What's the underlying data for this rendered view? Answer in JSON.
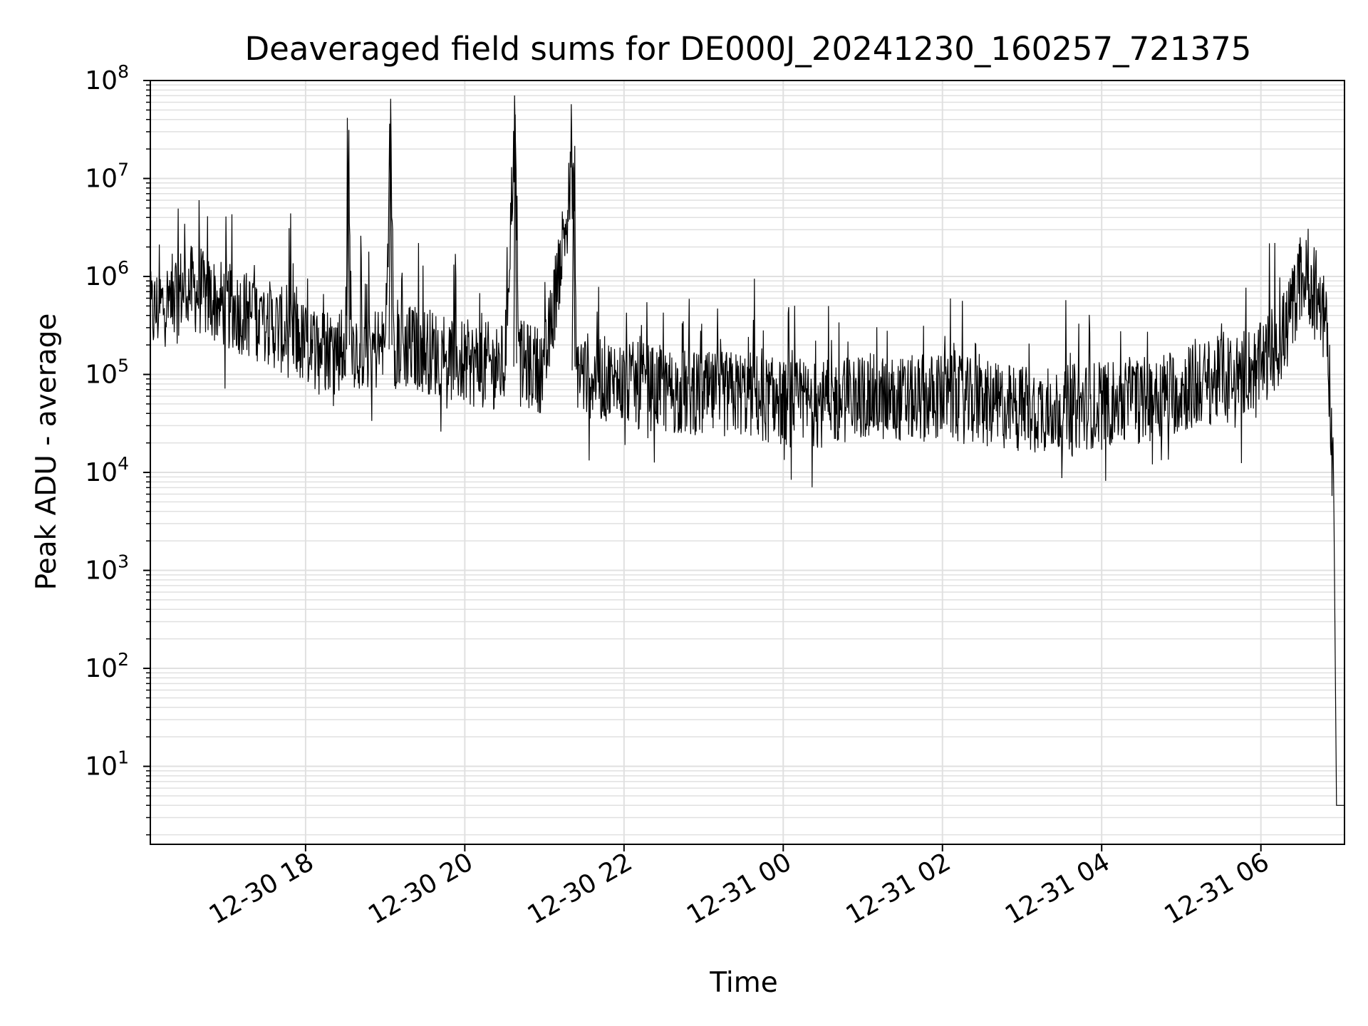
{
  "chart_data": {
    "type": "line",
    "title": "Deaveraged field sums for DE000J_20241230_160257_721375",
    "xlabel": "Time",
    "ylabel": "Peak ADU - average",
    "y_scale": "log",
    "ylim": [
      1.6,
      100000000
    ],
    "xlim": [
      "12-30 16:03",
      "12-31 07:03"
    ],
    "grid": true,
    "x_ticks": [
      "12-30 18",
      "12-30 20",
      "12-30 22",
      "12-31 00",
      "12-31 02",
      "12-31 04",
      "12-31 06"
    ],
    "y_ticks": [
      {
        "base": "10",
        "exp": "1",
        "value": 10
      },
      {
        "base": "10",
        "exp": "2",
        "value": 100
      },
      {
        "base": "10",
        "exp": "3",
        "value": 1000
      },
      {
        "base": "10",
        "exp": "4",
        "value": 10000
      },
      {
        "base": "10",
        "exp": "5",
        "value": 100000
      },
      {
        "base": "10",
        "exp": "6",
        "value": 1000000
      },
      {
        "base": "10",
        "exp": "7",
        "value": 10000000
      },
      {
        "base": "10",
        "exp": "8",
        "value": 100000000
      }
    ],
    "line_color": "#000000",
    "grid_color": "#e0e0e0",
    "series": [
      {
        "values_note_unused": "",
        "x": [
          "12-30 16:03",
          "12-30 16:30",
          "12-30 17:00",
          "12-30 17:30",
          "12-30 18:00",
          "12-30 18:30",
          "12-30 18:32",
          "12-30 18:35",
          "12-30 19:00",
          "12-30 19:04",
          "12-30 19:07",
          "12-30 19:30",
          "12-30 20:00",
          "12-30 20:30",
          "12-30 20:38",
          "12-30 20:41",
          "12-30 21:00",
          "12-30 21:22",
          "12-30 21:24",
          "12-30 21:30",
          "12-30 22:00",
          "12-30 22:30",
          "12-30 23:00",
          "12-30 23:30",
          "12-31 00:00",
          "12-31 00:30",
          "12-31 01:00",
          "12-31 01:30",
          "12-31 02:00",
          "12-31 02:30",
          "12-31 03:00",
          "12-31 03:30",
          "12-31 04:00",
          "12-31 04:30",
          "12-31 05:00",
          "12-31 05:30",
          "12-31 06:00",
          "12-31 06:20",
          "12-31 06:30",
          "12-31 06:40",
          "12-31 06:50",
          "12-31 06:55",
          "12-31 06:57",
          "12-31 07:03"
        ],
        "y": [
          400000,
          800000,
          500000,
          350000,
          200000,
          180000,
          9000000,
          200000,
          180000,
          35000000,
          200000,
          180000,
          130000,
          120000,
          45000000,
          130000,
          110000,
          13000000,
          120000,
          100000,
          80000,
          70000,
          60000,
          65000,
          50000,
          50000,
          60000,
          55000,
          60000,
          50000,
          45000,
          45000,
          50000,
          55000,
          70000,
          90000,
          120000,
          300000,
          1000000,
          800000,
          300000,
          5000,
          4,
          4
        ]
      }
    ]
  }
}
